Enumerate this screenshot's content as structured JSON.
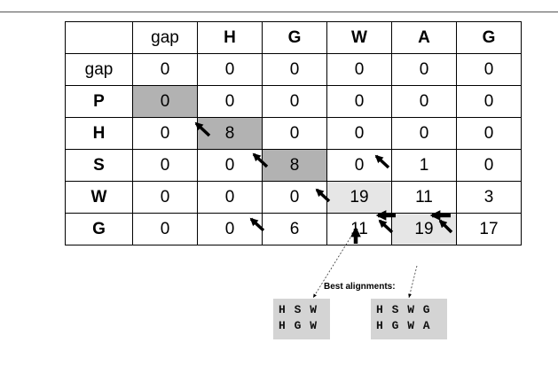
{
  "table": {
    "header": [
      "",
      "gap",
      "H",
      "G",
      "W",
      "A",
      "G"
    ],
    "rows": [
      {
        "label": "gap",
        "cells": [
          "0",
          "0",
          "0",
          "0",
          "0",
          "0"
        ]
      },
      {
        "label": "P",
        "cells": [
          "0",
          "0",
          "0",
          "0",
          "0",
          "0"
        ]
      },
      {
        "label": "H",
        "cells": [
          "0",
          "8",
          "0",
          "0",
          "0",
          "0"
        ]
      },
      {
        "label": "S",
        "cells": [
          "0",
          "0",
          "8",
          "0",
          "1",
          "0"
        ]
      },
      {
        "label": "W",
        "cells": [
          "0",
          "0",
          "0",
          "19",
          "11",
          "3"
        ]
      },
      {
        "label": "G",
        "cells": [
          "0",
          "0",
          "6",
          "11",
          "19",
          "17"
        ]
      }
    ],
    "shading": {
      "dark_color": "#b2b2b2",
      "light_color": "#e6e6e6"
    }
  },
  "best_alignments": {
    "label": "Best alignments:",
    "alignment_1": {
      "line1": "H S W",
      "line2": "H G W"
    },
    "alignment_2": {
      "line1": "H S W G",
      "line2": "H G W A"
    }
  }
}
